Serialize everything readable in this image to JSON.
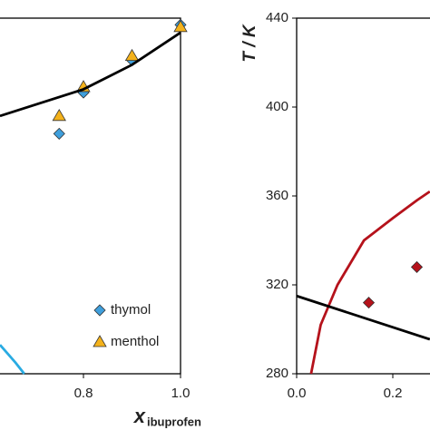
{
  "chart_data": [
    {
      "type": "line",
      "xlabel": "x",
      "xlabel_sub": "ibuprofen",
      "xlim": [
        0.6,
        1.0
      ],
      "xticks": [
        {
          "value": 0.8,
          "label": "0.8"
        },
        {
          "value": 1.0,
          "label": "1.0"
        }
      ],
      "ylim": [
        280,
        440
      ],
      "legend": "lower right",
      "series": [
        {
          "name": "thymol",
          "marker": "diamond",
          "color": "#3f9fdc",
          "x": [
            0.75,
            0.8,
            0.9,
            1.0
          ],
          "values": [
            388,
            406.5,
            421,
            437
          ]
        },
        {
          "name": "menthol",
          "marker": "triangle",
          "color": "#f4b21b",
          "x": [
            0.75,
            0.8,
            0.9,
            1.0
          ],
          "values": [
            396,
            409,
            423,
            436
          ]
        },
        {
          "marker": "none",
          "color": "#000000",
          "x": [
            0.628,
            0.8,
            0.9,
            1.0
          ],
          "values": [
            396,
            408,
            419,
            433.5
          ]
        },
        {
          "marker": "none",
          "color": "#29abe2",
          "x": [
            0.628,
            0.66,
            0.678
          ],
          "values": [
            293,
            285,
            280
          ]
        }
      ]
    },
    {
      "type": "line",
      "ylabel": "T / K",
      "xlim": [
        0,
        1.0
      ],
      "xticks": [
        {
          "value": 0,
          "label": "0.0"
        },
        {
          "value": 0.2,
          "label": "0.2"
        }
      ],
      "ylim": [
        280,
        440
      ],
      "yticks": [
        280,
        320,
        360,
        400,
        440
      ],
      "series": [
        {
          "marker": "none",
          "color": "#b5121b",
          "x": [
            0.03,
            0.05,
            0.085,
            0.14,
            0.2,
            0.25,
            0.277
          ],
          "values": [
            280,
            302,
            320,
            340,
            350,
            358,
            362
          ]
        },
        {
          "marker": "none",
          "color": "#000000",
          "x": [
            0,
            0.277
          ],
          "values": [
            315,
            295.5
          ]
        },
        {
          "marker": "diamond",
          "color": "#b5121b",
          "x": [
            0.15,
            0.25
          ],
          "values": [
            312,
            328
          ]
        }
      ]
    }
  ]
}
